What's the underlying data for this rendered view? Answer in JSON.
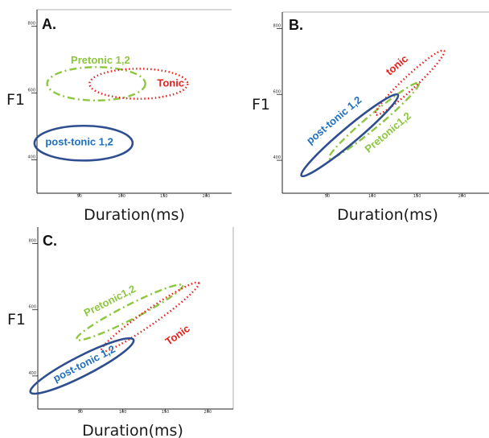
{
  "colors": {
    "pretonic": "#8dc63f",
    "tonic": "#e8211d",
    "posttonic": "#2e4e8f",
    "posttonic_text": "#1f6fbf",
    "axis": "#222222",
    "frame": "#999999"
  },
  "chart_data": [
    {
      "type": "scatter",
      "panel": "A.",
      "xlabel": "Duration(ms)",
      "ylabel": "F1",
      "xlim": [
        0,
        230
      ],
      "ylim": [
        300,
        850
      ],
      "x_ticks": [
        50,
        100,
        150,
        200
      ],
      "y_ticks": [
        400,
        600,
        800
      ],
      "grid": false,
      "series": [
        {
          "name": "Pretonic 1,2",
          "key": "pretonic",
          "style": "dashdot",
          "center": [
            70,
            628
          ],
          "rx": 58,
          "ry": 50,
          "angle": 0,
          "label_at": [
            75,
            697
          ],
          "label_rotation": 0
        },
        {
          "name": "Tonic",
          "key": "tonic",
          "style": "dotted",
          "center": [
            120,
            628
          ],
          "rx": 58,
          "ry": 45,
          "angle": 0,
          "label_at": [
            158,
            628
          ],
          "label_rotation": 0
        },
        {
          "name": "post-tonic 1,2",
          "key": "posttonic",
          "style": "solid",
          "center": [
            55,
            450
          ],
          "rx": 58,
          "ry": 52,
          "angle": 0,
          "label_at": [
            50,
            452
          ],
          "label_rotation": 0
        }
      ]
    },
    {
      "type": "scatter",
      "panel": "B.",
      "xlabel": "Duration(ms)",
      "ylabel": "F1",
      "xlim": [
        0,
        230
      ],
      "ylim": [
        300,
        850
      ],
      "x_ticks": [
        50,
        100,
        150,
        200
      ],
      "y_ticks": [
        400,
        600,
        800
      ],
      "grid": false,
      "series": [
        {
          "name": "Pretonic1,2",
          "key": "pretonic",
          "style": "dashdot",
          "center": [
            102,
            520
          ],
          "rx": 65,
          "ry": 20,
          "angle": -40,
          "label_at": [
            118,
            483
          ],
          "label_rotation": -40
        },
        {
          "name": "tonic",
          "key": "tonic",
          "style": "dotted",
          "center": [
            142,
            636
          ],
          "rx": 52,
          "ry": 20,
          "angle": -43,
          "label_at": [
            128,
            687
          ],
          "label_rotation": -40
        },
        {
          "name": "post-tonic 1,2",
          "key": "posttonic",
          "style": "solid",
          "center": [
            75,
            476
          ],
          "rx": 70,
          "ry": 24,
          "angle": -40,
          "label_at": [
            58,
            520
          ],
          "label_rotation": -40
        }
      ]
    },
    {
      "type": "scatter",
      "panel": "C.",
      "xlabel": "Duration(ms)",
      "ylabel": "F1",
      "xlim": [
        0,
        230
      ],
      "ylim": [
        300,
        850
      ],
      "x_ticks": [
        50,
        100,
        150,
        200
      ],
      "y_ticks": [
        400,
        600,
        800
      ],
      "grid": false,
      "series": [
        {
          "name": "Pretonic1,2",
          "key": "pretonic",
          "style": "dashdot",
          "center": [
            108,
            592
          ],
          "rx": 70,
          "ry": 22,
          "angle": -27,
          "label_at": [
            85,
            625
          ],
          "label_rotation": -27
        },
        {
          "name": "Tonic",
          "key": "tonic",
          "style": "dotted",
          "center": [
            132,
            578
          ],
          "rx": 70,
          "ry": 22,
          "angle": -35,
          "label_at": [
            165,
            522
          ],
          "label_rotation": -35
        },
        {
          "name": "post-tonic 1,2",
          "key": "posttonic",
          "style": "solid",
          "center": [
            52,
            430
          ],
          "rx": 68,
          "ry": 30,
          "angle": -27,
          "label_at": [
            55,
            435
          ],
          "label_rotation": -27
        }
      ]
    }
  ]
}
